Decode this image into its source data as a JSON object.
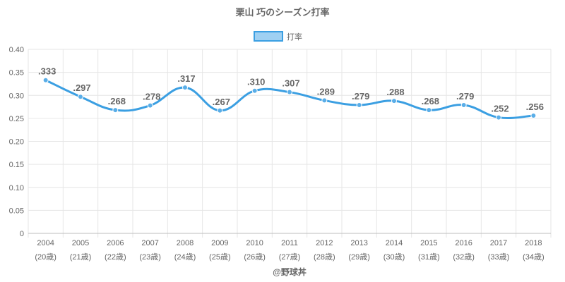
{
  "chart_data": {
    "type": "line",
    "title": "栗山 巧のシーズン打率",
    "series": [
      {
        "name": "打率",
        "color": "#3b9fe2",
        "values": [
          0.333,
          0.297,
          0.268,
          0.278,
          0.317,
          0.267,
          0.31,
          0.307,
          0.289,
          0.279,
          0.288,
          0.268,
          0.279,
          0.252,
          0.256
        ],
        "value_labels": [
          ".333",
          ".297",
          ".268",
          ".278",
          ".317",
          ".267",
          ".310",
          ".307",
          ".289",
          ".279",
          ".288",
          ".268",
          ".279",
          ".252",
          ".256"
        ]
      }
    ],
    "categories": [
      "2004",
      "2005",
      "2006",
      "2007",
      "2008",
      "2009",
      "2010",
      "2011",
      "2012",
      "2013",
      "2014",
      "2015",
      "2016",
      "2017",
      "2018"
    ],
    "category_sublabels": [
      "(20歳)",
      "(21歳)",
      "(22歳)",
      "(23歳)",
      "(24歳)",
      "(25歳)",
      "(26歳)",
      "(27歳)",
      "(28歳)",
      "(29歳)",
      "(30歳)",
      "(31歳)",
      "(32歳)",
      "(33歳)",
      "(34歳)"
    ],
    "y_ticks": [
      "0",
      "0.05",
      "0.10",
      "0.15",
      "0.20",
      "0.25",
      "0.30",
      "0.35",
      "0.40"
    ],
    "ylim": [
      0,
      0.4
    ],
    "xlabel": "",
    "ylabel": "",
    "grid": true,
    "legend_position": "top-center",
    "credit": "@野球丼"
  }
}
